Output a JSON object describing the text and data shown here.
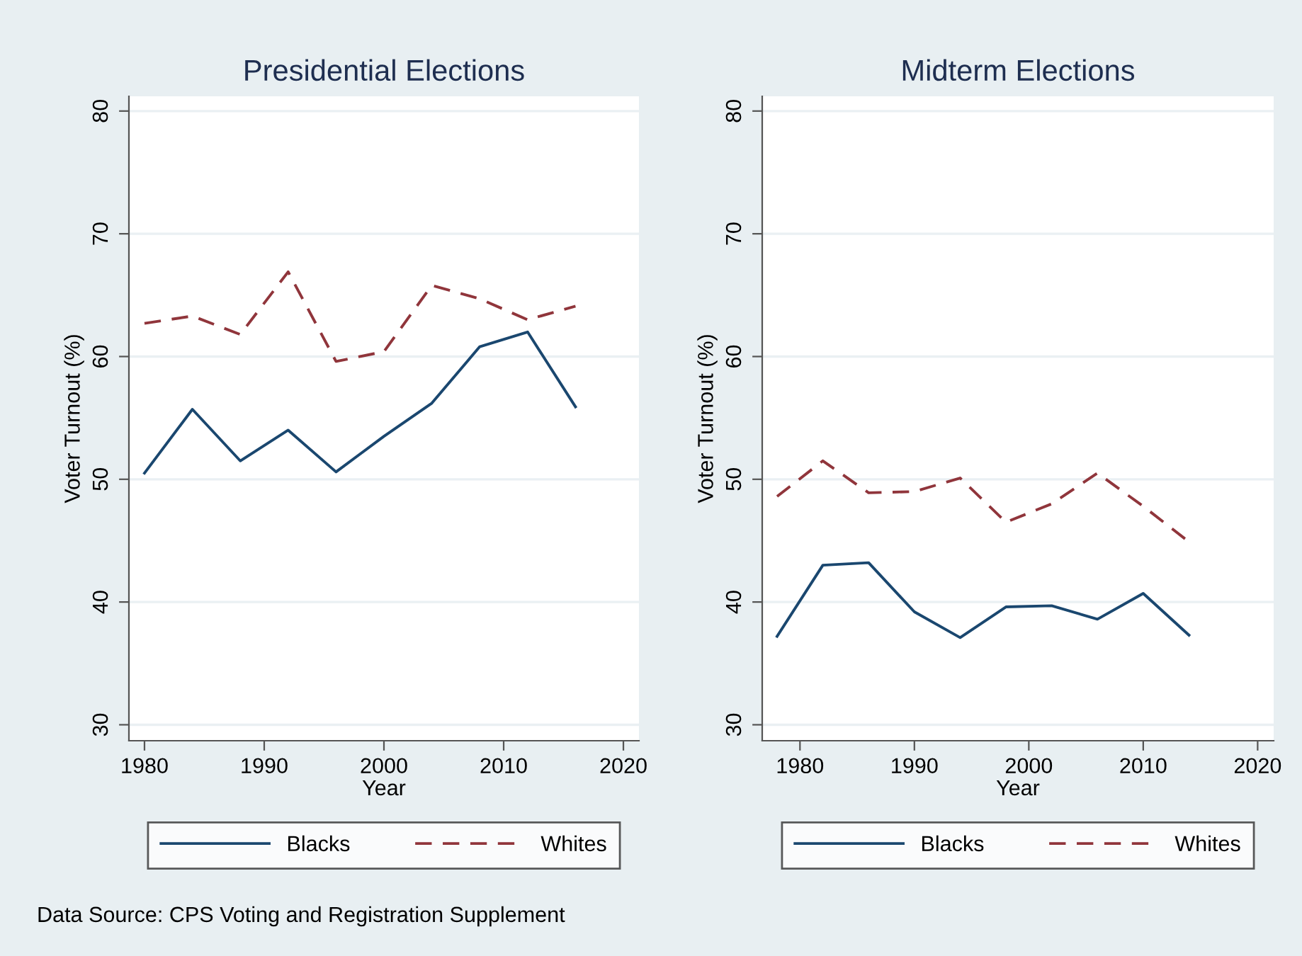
{
  "chart_data": [
    {
      "type": "line",
      "title": "Presidential Elections",
      "xlabel": "Year",
      "ylabel": "Voter Turnout (%)",
      "x": [
        1980,
        1984,
        1988,
        1992,
        1996,
        2000,
        2004,
        2008,
        2012,
        2016
      ],
      "series": [
        {
          "name": "Blacks",
          "color": "#1a476f",
          "line_style": "solid",
          "values": [
            50.5,
            55.7,
            51.5,
            54.0,
            50.6,
            53.5,
            56.2,
            60.8,
            62.0,
            55.9
          ]
        },
        {
          "name": "Whites",
          "color": "#90353b",
          "line_style": "dashed",
          "values": [
            62.7,
            63.3,
            61.8,
            66.9,
            59.6,
            60.4,
            65.8,
            64.7,
            63.0,
            64.1
          ]
        }
      ],
      "xlim": [
        1978.7,
        2021.3
      ],
      "xticks": [
        1980,
        1990,
        2000,
        2010,
        2020
      ],
      "ylim": [
        28.7,
        81.2
      ],
      "yticks": [
        30,
        40,
        50,
        60,
        70,
        80
      ],
      "grid": "y",
      "legend": "bottom",
      "annotations": [
        "Data Source: CPS Voting and Registration Supplement"
      ]
    },
    {
      "type": "line",
      "title": "Midterm Elections",
      "xlabel": "Year",
      "ylabel": "Voter Turnout (%)",
      "x": [
        1978,
        1982,
        1986,
        1990,
        1994,
        1998,
        2002,
        2006,
        2010,
        2014
      ],
      "series": [
        {
          "name": "Blacks",
          "color": "#1a476f",
          "line_style": "solid",
          "values": [
            37.2,
            43.0,
            43.2,
            39.2,
            37.1,
            39.6,
            39.7,
            38.6,
            40.7,
            37.3
          ]
        },
        {
          "name": "Whites",
          "color": "#90353b",
          "line_style": "dashed",
          "values": [
            48.6,
            51.5,
            48.9,
            49.0,
            50.1,
            46.5,
            48.0,
            50.5,
            47.8,
            44.9
          ]
        }
      ],
      "xlim": [
        1976.7,
        2021.4
      ],
      "xticks": [
        1980,
        1990,
        2000,
        2010,
        2020
      ],
      "ylim": [
        28.7,
        81.2
      ],
      "yticks": [
        30,
        40,
        50,
        60,
        70,
        80
      ],
      "grid": "y",
      "legend": "bottom"
    }
  ]
}
